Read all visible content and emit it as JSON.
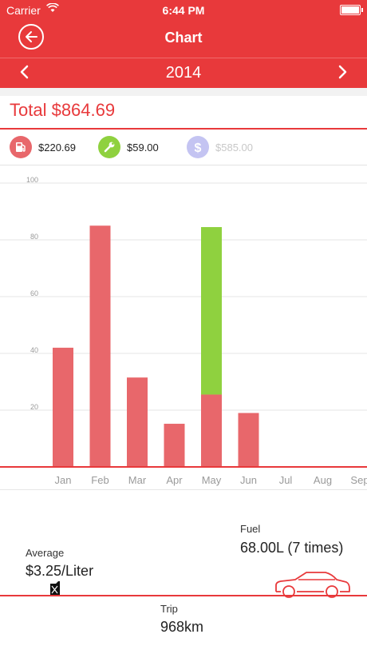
{
  "status_bar": {
    "carrier": "Carrier",
    "time": "6:44 PM"
  },
  "nav": {
    "title": "Chart"
  },
  "year_bar": {
    "year": "2014"
  },
  "summary": {
    "total": "Total $864.69"
  },
  "legend": [
    {
      "icon": "fuel-pump-icon",
      "amount": "$220.69",
      "color": "#e8676b",
      "enabled": true
    },
    {
      "icon": "wrench-icon",
      "amount": "$59.00",
      "color": "#8fd13f",
      "enabled": true
    },
    {
      "icon": "dollar-icon",
      "amount": "$585.00",
      "color": "#c4c4f2",
      "enabled": false
    }
  ],
  "colors": {
    "accent": "#e8393b",
    "fuel": "#e8676b",
    "service": "#8fd13f",
    "other": "#c4c4f2"
  },
  "chart_data": {
    "type": "bar",
    "stacked": true,
    "categories": [
      "Jan",
      "Feb",
      "Mar",
      "Apr",
      "May",
      "Jun",
      "Jul",
      "Aug",
      "Sep"
    ],
    "series": [
      {
        "values": [
          42,
          85,
          31.5,
          15.2,
          25.5,
          19,
          0,
          0,
          0
        ],
        "color": "#e8676b"
      },
      {
        "values": [
          0,
          0,
          0,
          0,
          59,
          0,
          0,
          0,
          0
        ],
        "color": "#8fd13f"
      }
    ],
    "y_ticks": [
      20,
      40,
      60,
      80,
      100
    ],
    "ylim": [
      0,
      100
    ],
    "grid": true
  },
  "stats": {
    "average_label": "Average",
    "average_value": "$3.25/Liter",
    "fuel_label": "Fuel",
    "fuel_value": "68.00L (7 times)",
    "trip_label": "Trip",
    "trip_value": "968km"
  }
}
